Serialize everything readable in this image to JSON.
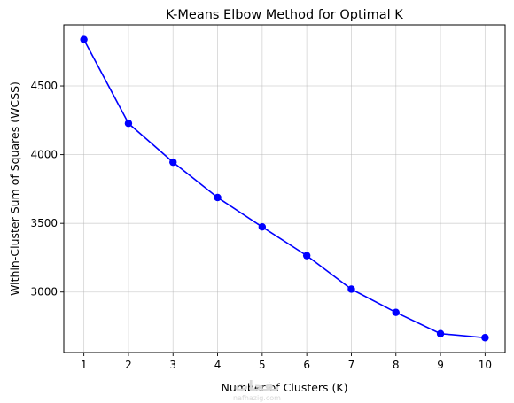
{
  "chart_data": {
    "type": "line",
    "title": "K-Means Elbow Method for Optimal K",
    "xlabel": "Number of Clusters (K)",
    "ylabel": "Within-Cluster Sum of Squares (WCSS)",
    "x": [
      1,
      2,
      3,
      4,
      5,
      6,
      7,
      8,
      9,
      10
    ],
    "series": [
      {
        "values": [
          4838,
          4228,
          3945,
          3688,
          3474,
          3265,
          3021,
          2852,
          2697,
          2668
        ],
        "color": "#0000ff",
        "marker": "circle"
      }
    ],
    "xticks": [
      1,
      2,
      3,
      4,
      5,
      6,
      7,
      8,
      9,
      10
    ],
    "yticks": [
      3000,
      3500,
      4000,
      4500
    ],
    "xlim": [
      0.55,
      10.45
    ],
    "ylim": [
      2560,
      4945
    ],
    "grid": true
  },
  "watermark": {
    "text": "نفحات",
    "subtext": "nafhazig.com"
  }
}
